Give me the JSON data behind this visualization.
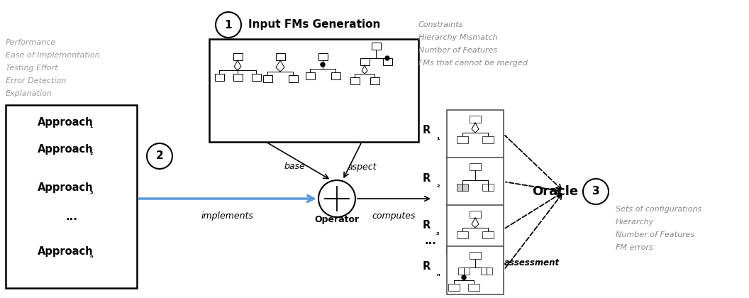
{
  "bg_color": "#ffffff",
  "left_italic_lines": [
    "Performance",
    "Ease of Implementation",
    "Testing Effort",
    "Error Detection",
    "Explanation"
  ],
  "left_italic_color": "#999999",
  "approach_items": [
    "Approach₁",
    "Approach₂",
    "Approach₃",
    "...",
    "Approachₙ"
  ],
  "top_right_lines": [
    "Constraints",
    "Hierarchy Mismatch",
    "Number of Features",
    "FMs that cannot be merged"
  ],
  "top_right_color": "#888888",
  "oracle_lines": [
    "Sets of configurations",
    "Hierarchy",
    "Number of Features",
    "FM errors"
  ],
  "oracle_color": "#888888",
  "result_labels": [
    "R₁",
    "R₂",
    "R₃",
    "...",
    "Rₙ"
  ]
}
